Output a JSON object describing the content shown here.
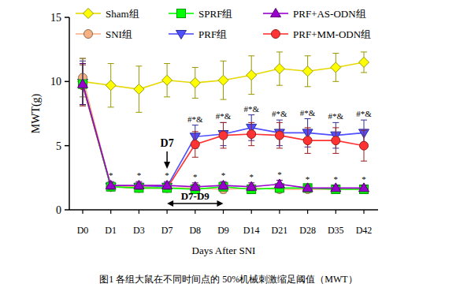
{
  "chart_data": {
    "type": "line",
    "caption": "图1 各组大鼠在不同时间点的 50%机械刺激缩足阈值（MWT）",
    "x_label": "Days After SNI",
    "y_label": "MWT(g)",
    "categories": [
      "D0",
      "D1",
      "D3",
      "D7",
      "D8",
      "D9",
      "D14",
      "D21",
      "D28",
      "D35",
      "D42"
    ],
    "ylim": [
      0,
      15
    ],
    "yticks": [
      0,
      5,
      10,
      15
    ],
    "legend": "top",
    "series": [
      {
        "name": "Sham组",
        "color": "#ffff00",
        "marker": "diamond",
        "values": [
          10.0,
          9.7,
          9.4,
          10.1,
          9.9,
          10.1,
          10.5,
          11.0,
          10.8,
          11.1,
          11.5
        ],
        "errors": [
          1.8,
          1.7,
          1.8,
          1.3,
          1.2,
          1.5,
          1.5,
          1.3,
          1.2,
          1.1,
          0.8
        ]
      },
      {
        "name": "SNI组",
        "color": "#f4b183",
        "marker": "circle",
        "values": [
          10.3,
          1.8,
          1.8,
          1.7,
          1.7,
          1.6,
          1.7,
          1.6,
          1.6,
          1.6,
          1.6
        ],
        "errors": [
          1.5,
          0.3,
          0.3,
          0.3,
          0.3,
          0.3,
          0.2,
          0.2,
          0.2,
          0.2,
          0.2
        ]
      },
      {
        "name": "SPRF组",
        "color": "#00ff00",
        "marker": "square",
        "values": [
          9.8,
          1.8,
          1.7,
          1.7,
          1.6,
          1.8,
          1.6,
          1.7,
          1.7,
          1.6,
          1.6
        ],
        "errors": [
          1.6,
          0.3,
          0.3,
          0.3,
          0.3,
          0.3,
          0.2,
          0.2,
          0.2,
          0.2,
          0.2
        ]
      },
      {
        "name": "PRF组",
        "color": "#4f4fff",
        "marker": "triangle-down",
        "values": [
          9.9,
          1.8,
          1.8,
          1.8,
          5.7,
          5.9,
          6.4,
          6.0,
          6.0,
          5.8,
          6.0
        ],
        "errors": [
          1.7,
          0.3,
          0.3,
          0.3,
          0.9,
          0.9,
          1.0,
          1.0,
          1.1,
          1.0,
          1.0
        ]
      },
      {
        "name": "PRF+AS-ODN组",
        "color": "#9900cc",
        "marker": "triangle",
        "values": [
          9.8,
          1.9,
          1.9,
          1.9,
          1.8,
          1.9,
          1.8,
          2.0,
          1.7,
          1.7,
          1.7
        ],
        "errors": [
          1.6,
          0.3,
          0.3,
          0.3,
          0.3,
          0.3,
          0.3,
          0.3,
          0.2,
          0.2,
          0.2
        ]
      },
      {
        "name": "PRF+MM-ODN组",
        "color": "#ff3333",
        "marker": "circle",
        "values": [
          9.7,
          1.8,
          1.7,
          1.7,
          5.1,
          5.8,
          5.9,
          5.8,
          5.4,
          5.4,
          5.0
        ],
        "errors": [
          1.6,
          0.3,
          0.3,
          0.3,
          1.0,
          1.0,
          0.9,
          1.0,
          1.0,
          1.0,
          1.2
        ]
      }
    ],
    "annotations": [
      {
        "text": "*",
        "category": "D1",
        "series": "PRF+AS-ODN组"
      },
      {
        "text": "*",
        "category": "D3",
        "series": "PRF+AS-ODN组"
      },
      {
        "text": "*",
        "category": "D7",
        "series": "PRF+AS-ODN组"
      },
      {
        "text": "*",
        "category": "D8",
        "series": "PRF+AS-ODN组"
      },
      {
        "text": "*",
        "category": "D9",
        "series": "PRF+AS-ODN组"
      },
      {
        "text": "*",
        "category": "D14",
        "series": "PRF+AS-ODN组"
      },
      {
        "text": "*",
        "category": "D21",
        "series": "PRF+AS-ODN组"
      },
      {
        "text": "*",
        "category": "D28",
        "series": "PRF+AS-ODN组"
      },
      {
        "text": "*",
        "category": "D35",
        "series": "PRF+AS-ODN组"
      },
      {
        "text": "*",
        "category": "D42",
        "series": "PRF+AS-ODN组"
      },
      {
        "text": "#*&",
        "category": "D8",
        "series": "PRF组"
      },
      {
        "text": "#*&",
        "category": "D9",
        "series": "PRF组"
      },
      {
        "text": "#*&",
        "category": "D14",
        "series": "PRF组"
      },
      {
        "text": "#*&",
        "category": "D21",
        "series": "PRF组"
      },
      {
        "text": "#*&",
        "category": "D28",
        "series": "PRF组"
      },
      {
        "text": "#*&",
        "category": "D35",
        "series": "PRF组"
      },
      {
        "text": "#*&",
        "category": "D42",
        "series": "PRF组"
      },
      {
        "text": "D7",
        "category": "D7"
      },
      {
        "text": "D7-D9",
        "from": "D7",
        "to": "D9"
      }
    ]
  }
}
